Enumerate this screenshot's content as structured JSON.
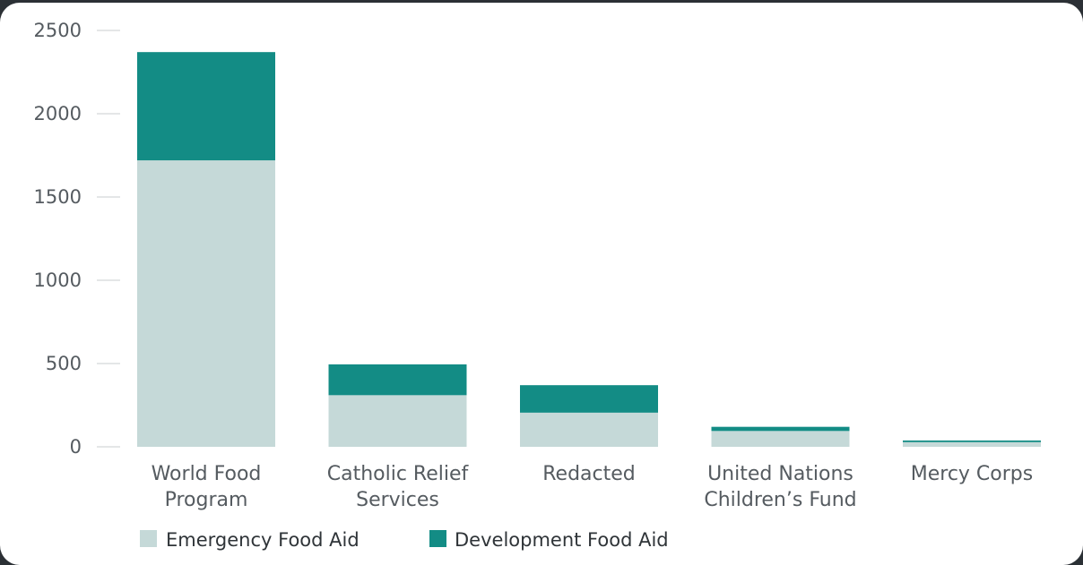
{
  "chart_data": {
    "type": "bar",
    "stacked": true,
    "categories": [
      [
        "World Food",
        "Program"
      ],
      [
        "Catholic Relief",
        "Services"
      ],
      [
        "Redacted"
      ],
      [
        "United Nations",
        "Children’s Fund"
      ],
      [
        "Mercy Corps"
      ]
    ],
    "series": [
      {
        "name": "Emergency Food Aid",
        "color": "#c5d9d8",
        "values": [
          1720,
          310,
          205,
          95,
          28
        ]
      },
      {
        "name": "Development Food Aid",
        "color": "#138c85",
        "values": [
          650,
          185,
          165,
          25,
          10
        ]
      }
    ],
    "ylim": [
      0,
      2500
    ],
    "yticks": [
      0,
      500,
      1000,
      1500,
      2000,
      2500
    ],
    "ytick_labels": [
      "0",
      "500",
      "1000",
      "1500",
      "2000",
      "2500"
    ],
    "title": "",
    "xlabel": "",
    "ylabel": "",
    "legend_position": "bottom-left",
    "grid": false
  }
}
